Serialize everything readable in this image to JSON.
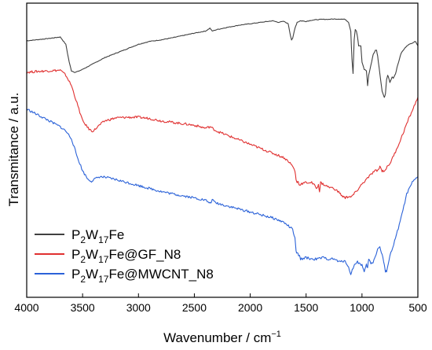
{
  "chart_data": {
    "type": "line",
    "xlabel": "Wavenumber / cm",
    "xlabel_sup": "−1",
    "ylabel": "Transmitance / a.u.",
    "xlim": [
      4000,
      500
    ],
    "x_reversed": true,
    "ylim": [
      0,
      1
    ],
    "x_ticks": [
      4000,
      3500,
      3000,
      2500,
      2000,
      1500,
      1000,
      500
    ],
    "y_ticks_shown": false,
    "grid": false,
    "legend": {
      "placement": "bottom-left",
      "entries": [
        {
          "base": "P",
          "sub1": "2",
          "mid": "W",
          "sub2": "17",
          "rest": "Fe"
        },
        {
          "base": "P",
          "sub1": "2",
          "mid": "W",
          "sub2": "17",
          "rest": "Fe@GF_N8"
        },
        {
          "base": "P",
          "sub1": "2",
          "mid": "W",
          "sub2": "17",
          "rest": "Fe@MWCNT_N8"
        }
      ]
    },
    "series": [
      {
        "color": "#404040",
        "x": [
          4000,
          3900,
          3800,
          3700,
          3650,
          3620,
          3600,
          3570,
          3540,
          3500,
          3450,
          3400,
          3350,
          3300,
          3200,
          3100,
          3000,
          2900,
          2800,
          2700,
          2600,
          2500,
          2400,
          2360,
          2340,
          2300,
          2200,
          2100,
          2000,
          1900,
          1800,
          1750,
          1700,
          1660,
          1640,
          1630,
          1620,
          1600,
          1580,
          1550,
          1500,
          1450,
          1400,
          1350,
          1300,
          1250,
          1200,
          1150,
          1120,
          1100,
          1090,
          1080,
          1070,
          1060,
          1050,
          1040,
          1030,
          1010,
          1000,
          980,
          960,
          950,
          940,
          920,
          900,
          880,
          870,
          860,
          840,
          820,
          800,
          790,
          780,
          770,
          760,
          750,
          740,
          730,
          720,
          700,
          680,
          650,
          600,
          550,
          520,
          500
        ],
        "y": [
          0.872,
          0.876,
          0.88,
          0.885,
          0.86,
          0.8,
          0.77,
          0.765,
          0.768,
          0.775,
          0.785,
          0.795,
          0.805,
          0.815,
          0.83,
          0.845,
          0.86,
          0.87,
          0.875,
          0.882,
          0.89,
          0.898,
          0.905,
          0.915,
          0.905,
          0.91,
          0.918,
          0.925,
          0.93,
          0.935,
          0.94,
          0.935,
          0.938,
          0.93,
          0.89,
          0.875,
          0.88,
          0.915,
          0.935,
          0.94,
          0.938,
          0.942,
          0.944,
          0.945,
          0.945,
          0.946,
          0.946,
          0.945,
          0.935,
          0.905,
          0.81,
          0.76,
          0.875,
          0.91,
          0.905,
          0.885,
          0.855,
          0.855,
          0.8,
          0.775,
          0.77,
          0.72,
          0.755,
          0.79,
          0.825,
          0.84,
          0.84,
          0.82,
          0.76,
          0.7,
          0.68,
          0.69,
          0.74,
          0.755,
          0.745,
          0.73,
          0.74,
          0.75,
          0.745,
          0.76,
          0.79,
          0.83,
          0.855,
          0.865,
          0.87,
          0.855
        ]
      },
      {
        "color": "#e03030",
        "x": [
          4000,
          3900,
          3800,
          3700,
          3650,
          3600,
          3550,
          3500,
          3450,
          3420,
          3400,
          3350,
          3300,
          3200,
          3100,
          3000,
          2900,
          2800,
          2700,
          2600,
          2500,
          2400,
          2360,
          2340,
          2300,
          2200,
          2100,
          2000,
          1900,
          1800,
          1700,
          1650,
          1620,
          1600,
          1590,
          1580,
          1570,
          1560,
          1550,
          1500,
          1450,
          1400,
          1390,
          1380,
          1370,
          1350,
          1300,
          1250,
          1200,
          1180,
          1160,
          1150,
          1140,
          1130,
          1100,
          1050,
          1000,
          950,
          900,
          880,
          860,
          840,
          820,
          800,
          750,
          700,
          650,
          600,
          550,
          500
        ],
        "y": [
          0.765,
          0.768,
          0.77,
          0.772,
          0.755,
          0.72,
          0.66,
          0.6,
          0.575,
          0.565,
          0.567,
          0.585,
          0.6,
          0.61,
          0.612,
          0.612,
          0.608,
          0.6,
          0.595,
          0.59,
          0.585,
          0.575,
          0.58,
          0.575,
          0.565,
          0.55,
          0.535,
          0.52,
          0.505,
          0.49,
          0.475,
          0.46,
          0.445,
          0.43,
          0.4,
          0.39,
          0.395,
          0.38,
          0.385,
          0.39,
          0.39,
          0.37,
          0.385,
          0.36,
          0.39,
          0.385,
          0.375,
          0.37,
          0.355,
          0.345,
          0.34,
          0.338,
          0.345,
          0.34,
          0.34,
          0.36,
          0.385,
          0.405,
          0.425,
          0.43,
          0.43,
          0.445,
          0.43,
          0.43,
          0.455,
          0.495,
          0.54,
          0.59,
          0.635,
          0.68
        ]
      },
      {
        "color": "#2b62d8",
        "x": [
          4000,
          3900,
          3800,
          3700,
          3650,
          3600,
          3550,
          3500,
          3450,
          3420,
          3400,
          3350,
          3300,
          3200,
          3100,
          3000,
          2900,
          2800,
          2700,
          2600,
          2500,
          2400,
          2360,
          2340,
          2300,
          2200,
          2100,
          2000,
          1900,
          1800,
          1700,
          1650,
          1620,
          1600,
          1590,
          1580,
          1560,
          1550,
          1500,
          1450,
          1400,
          1350,
          1300,
          1250,
          1200,
          1150,
          1120,
          1100,
          1080,
          1060,
          1040,
          1020,
          1000,
          980,
          960,
          950,
          940,
          920,
          900,
          880,
          860,
          840,
          820,
          800,
          790,
          780,
          750,
          700,
          650,
          600,
          550,
          500
        ],
        "y": [
          0.64,
          0.62,
          0.6,
          0.58,
          0.565,
          0.54,
          0.48,
          0.43,
          0.4,
          0.395,
          0.4,
          0.41,
          0.408,
          0.4,
          0.39,
          0.38,
          0.37,
          0.36,
          0.352,
          0.345,
          0.338,
          0.33,
          0.32,
          0.33,
          0.32,
          0.31,
          0.3,
          0.29,
          0.28,
          0.27,
          0.255,
          0.24,
          0.23,
          0.2,
          0.155,
          0.15,
          0.14,
          0.13,
          0.135,
          0.13,
          0.13,
          0.135,
          0.13,
          0.13,
          0.12,
          0.125,
          0.1,
          0.08,
          0.1,
          0.115,
          0.12,
          0.115,
          0.11,
          0.085,
          0.11,
          0.1,
          0.13,
          0.115,
          0.12,
          0.14,
          0.165,
          0.17,
          0.145,
          0.11,
          0.085,
          0.09,
          0.14,
          0.2,
          0.27,
          0.35,
          0.39,
          0.41
        ]
      }
    ]
  }
}
